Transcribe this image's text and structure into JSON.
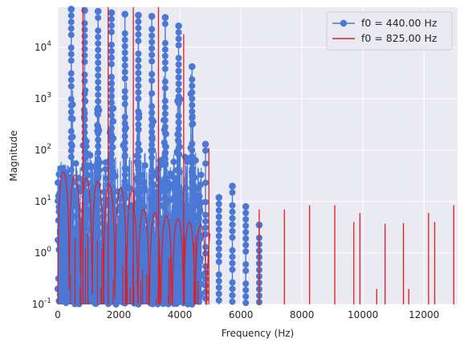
{
  "chart_data": {
    "type": "line",
    "xlabel": "Frequency (Hz)",
    "ylabel": "Magnitude",
    "xlim": [
      0,
      13100
    ],
    "ylim": [
      0.1,
      60000
    ],
    "yscale": "log",
    "grid": true,
    "background": "#eaeaf2",
    "legend_position": "top-right",
    "x_ticks": [
      "0",
      "2000",
      "4000",
      "6000",
      "8000",
      "10000",
      "12000"
    ],
    "x_tick_values": [
      0,
      2000,
      4000,
      6000,
      8000,
      10000,
      12000
    ],
    "y_ticks": [
      "10^-1",
      "10^0",
      "10^1",
      "10^2",
      "10^3",
      "10^4"
    ],
    "y_tick_values": [
      0.1,
      1,
      10,
      100,
      1000,
      10000
    ],
    "series": [
      {
        "name": "f0 = 440.00 Hz",
        "color": "#4a78d4",
        "style": "stem-markers",
        "harmonics": [
          {
            "x": 440,
            "y": 55000
          },
          {
            "x": 880,
            "y": 52000
          },
          {
            "x": 1320,
            "y": 50000
          },
          {
            "x": 1760,
            "y": 47000
          },
          {
            "x": 2200,
            "y": 44000
          },
          {
            "x": 2640,
            "y": 42000
          },
          {
            "x": 3080,
            "y": 40000
          },
          {
            "x": 3520,
            "y": 38000
          },
          {
            "x": 3960,
            "y": 26000
          },
          {
            "x": 4400,
            "y": 4200
          },
          {
            "x": 4840,
            "y": 130
          },
          {
            "x": 5280,
            "y": 12
          },
          {
            "x": 5720,
            "y": 20
          },
          {
            "x": 6160,
            "y": 8
          },
          {
            "x": 6600,
            "y": 3.5
          }
        ]
      },
      {
        "name": "f0 = 825.00 Hz",
        "color": "#e41a1c",
        "style": "line",
        "harmonics": [
          {
            "x": 825,
            "y": 60000
          },
          {
            "x": 1650,
            "y": 60000
          },
          {
            "x": 2475,
            "y": 60000
          },
          {
            "x": 3300,
            "y": 60000
          },
          {
            "x": 4125,
            "y": 18000
          },
          {
            "x": 4950,
            "y": 110
          },
          {
            "x": 6600,
            "y": 7
          },
          {
            "x": 7425,
            "y": 7
          },
          {
            "x": 8250,
            "y": 8.5
          },
          {
            "x": 9075,
            "y": 8.5
          },
          {
            "x": 9900,
            "y": 6
          },
          {
            "x": 10725,
            "y": 3.7
          },
          {
            "x": 11325,
            "y": 3.8
          },
          {
            "x": 12150,
            "y": 6
          },
          {
            "x": 12975,
            "y": 8.5
          }
        ],
        "small_spikes": [
          {
            "x": 9700,
            "y": 4
          },
          {
            "x": 10450,
            "y": 0.2
          },
          {
            "x": 11500,
            "y": 0.2
          },
          {
            "x": 12350,
            "y": 4
          }
        ]
      }
    ]
  }
}
